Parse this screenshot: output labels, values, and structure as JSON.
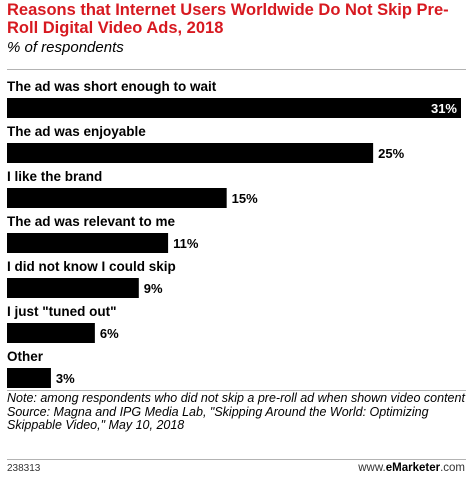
{
  "header": {
    "title": "Reasons that Internet Users Worldwide Do Not Skip Pre-Roll Digital Video Ads, 2018",
    "subtitle": "% of respondents"
  },
  "chart_data": {
    "type": "bar",
    "orientation": "horizontal",
    "categories": [
      "The ad was short enough to wait",
      "The ad was enjoyable",
      "I like the brand",
      "The ad was relevant to me",
      "I did not know I could skip",
      "I just \"tuned out\"",
      "Other"
    ],
    "values": [
      31,
      25,
      15,
      11,
      9,
      6,
      3
    ],
    "value_labels": [
      "31%",
      "25%",
      "15%",
      "11%",
      "9%",
      "6%",
      "3%"
    ],
    "unit": "%",
    "title": "Reasons that Internet Users Worldwide Do Not Skip Pre-Roll Digital Video Ads, 2018",
    "subtitle": "% of respondents",
    "xlabel": "",
    "ylabel": "",
    "xlim": [
      0,
      31
    ],
    "grid": false,
    "legend": "none",
    "bar_color": "#000000"
  },
  "footer": {
    "note": "Note: among respondents who did not skip a pre-roll ad when shown video content",
    "source": "Source: Magna and IPG Media Lab, \"Skipping Around the World: Optimizing Skippable Video,\" May 10, 2018",
    "chart_id": "238313",
    "brand_prefix": "www.",
    "brand_name": "eMarketer",
    "brand_suffix": ".com"
  },
  "colors": {
    "title": "#d71920",
    "bar": "#000000",
    "rule": "#b3b3b3"
  }
}
